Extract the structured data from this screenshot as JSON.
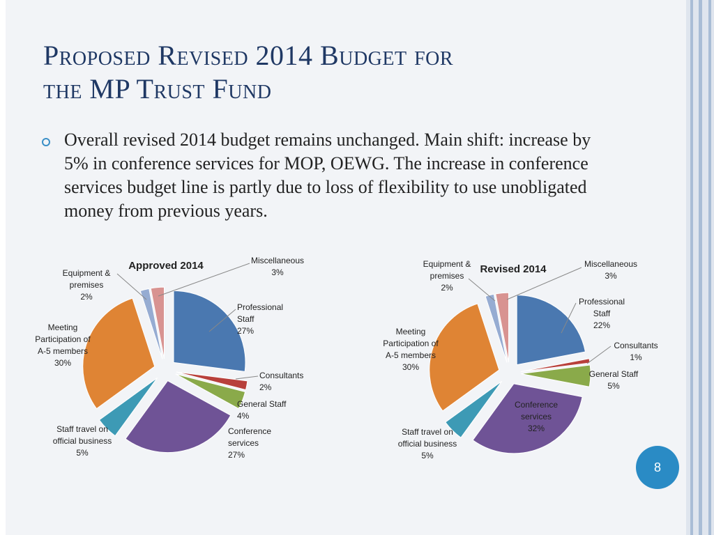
{
  "slide": {
    "title_line1": "Proposed Revised 2014 Budget for",
    "title_line2": "the MP Trust Fund",
    "bullet": "Overall revised 2014 budget remains unchanged. Main shift: increase by 5% in conference services for MOP, OEWG. The increase in conference services budget line is partly due to loss of flexibility to use unobligated money from previous years.",
    "page_number": "8"
  },
  "colors": {
    "title": "#1f3864",
    "accent": "#2a8bc5"
  },
  "chart_data": [
    {
      "type": "pie",
      "title": "Approved 2014",
      "slices": [
        {
          "name": "Professional Staff",
          "value": 27,
          "label": "27%",
          "color": "#4a78b0"
        },
        {
          "name": "Consultants",
          "value": 2,
          "label": "2%",
          "color": "#b8403b"
        },
        {
          "name": "General Staff",
          "value": 4,
          "label": "4%",
          "color": "#8aaa4a"
        },
        {
          "name": "Conference services",
          "value": 27,
          "label": "27%",
          "color": "#6f5396"
        },
        {
          "name": "Staff travel on official business",
          "value": 5,
          "label": "5%",
          "color": "#3d9ab5"
        },
        {
          "name": "Meeting Participation of A-5 members",
          "value": 30,
          "label": "30%",
          "color": "#df8434"
        },
        {
          "name": "Equipment & premises",
          "value": 2,
          "label": "2%",
          "color": "#96acd2"
        },
        {
          "name": "Miscellaneous",
          "value": 3,
          "label": "3%",
          "color": "#d89391"
        }
      ]
    },
    {
      "type": "pie",
      "title": "Revised 2014",
      "slices": [
        {
          "name": "Professional Staff",
          "value": 22,
          "label": "22%",
          "color": "#4a78b0"
        },
        {
          "name": "Consultants",
          "value": 1,
          "label": "1%",
          "color": "#b8403b"
        },
        {
          "name": "General Staff",
          "value": 5,
          "label": "5%",
          "color": "#8aaa4a"
        },
        {
          "name": "Conference services",
          "value": 32,
          "label": "32%",
          "color": "#6f5396"
        },
        {
          "name": "Staff travel on official business",
          "value": 5,
          "label": "5%",
          "color": "#3d9ab5"
        },
        {
          "name": "Meeting Participation of A-5 members",
          "value": 30,
          "label": "30%",
          "color": "#df8434"
        },
        {
          "name": "Equipment & premises",
          "value": 2,
          "label": "2%",
          "color": "#96acd2"
        },
        {
          "name": "Miscellaneous",
          "value": 3,
          "label": "3%",
          "color": "#d89391"
        }
      ]
    }
  ]
}
